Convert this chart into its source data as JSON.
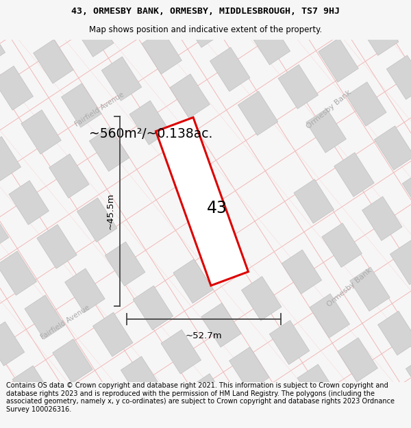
{
  "title_line1": "43, ORMESBY BANK, ORMESBY, MIDDLESBROUGH, TS7 9HJ",
  "title_line2": "Map shows position and indicative extent of the property.",
  "footer_text": "Contains OS data © Crown copyright and database right 2021. This information is subject to Crown copyright and database rights 2023 and is reproduced with the permission of HM Land Registry. The polygons (including the associated geometry, namely x, y co-ordinates) are subject to Crown copyright and database rights 2023 Ordnance Survey 100026316.",
  "area_text": "~560m²/~0.138ac.",
  "label_number": "43",
  "dim_width": "~52.7m",
  "dim_height": "~45.5m",
  "background_color": "#f7f6f6",
  "map_bg_color": "#f7f6f6",
  "road_line_color": "#f0b8b8",
  "plot_outline_color": "#dd0000",
  "block_color": "#d4d4d4",
  "block_stroke": "#c0c0c0",
  "road_label_color": "#aaaaaa",
  "dim_line_color": "#444444",
  "title_fontsize": 9.5,
  "subtitle_fontsize": 8.5,
  "footer_fontsize": 7.0
}
